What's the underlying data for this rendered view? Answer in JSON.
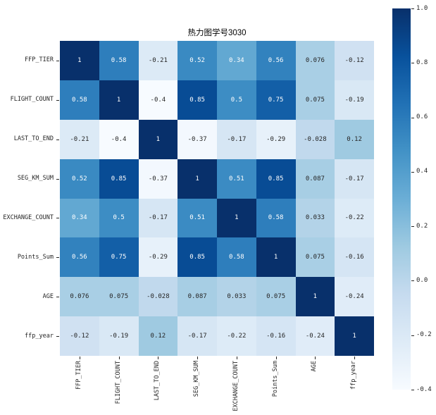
{
  "chart_data": {
    "type": "heatmap",
    "title": "热力图学号3030",
    "labels": [
      "FFP_TIER",
      "FLIGHT_COUNT",
      "LAST_TO_END",
      "SEG_KM_SUM",
      "EXCHANGE_COUNT",
      "Points_Sum",
      "AGE",
      "ffp_year"
    ],
    "matrix": [
      [
        1,
        0.58,
        -0.21,
        0.52,
        0.34,
        0.56,
        0.076,
        -0.12
      ],
      [
        0.58,
        1,
        -0.4,
        0.85,
        0.5,
        0.75,
        0.075,
        -0.19
      ],
      [
        -0.21,
        -0.4,
        1,
        -0.37,
        -0.17,
        -0.29,
        -0.028,
        0.12
      ],
      [
        0.52,
        0.85,
        -0.37,
        1,
        0.51,
        0.85,
        0.087,
        -0.17
      ],
      [
        0.34,
        0.5,
        -0.17,
        0.51,
        1,
        0.58,
        0.033,
        -0.22
      ],
      [
        0.56,
        0.75,
        -0.29,
        0.85,
        0.58,
        1,
        0.075,
        -0.16
      ],
      [
        0.076,
        0.075,
        -0.028,
        0.087,
        0.033,
        0.075,
        1,
        -0.24
      ],
      [
        -0.12,
        -0.19,
        0.12,
        -0.17,
        -0.22,
        -0.16,
        -0.24,
        1
      ]
    ],
    "annotations": [
      [
        "1",
        "0.58",
        "-0.21",
        "0.52",
        "0.34",
        "0.56",
        "0.076",
        "-0.12"
      ],
      [
        "0.58",
        "1",
        "-0.4",
        "0.85",
        "0.5",
        "0.75",
        "0.075",
        "-0.19"
      ],
      [
        "-0.21",
        "-0.4",
        "1",
        "-0.37",
        "-0.17",
        "-0.29",
        "-0.028",
        "0.12"
      ],
      [
        "0.52",
        "0.85",
        "-0.37",
        "1",
        "0.51",
        "0.85",
        "0.087",
        "-0.17"
      ],
      [
        "0.34",
        "0.5",
        "-0.17",
        "0.51",
        "1",
        "0.58",
        "0.033",
        "-0.22"
      ],
      [
        "0.56",
        "0.75",
        "-0.29",
        "0.85",
        "0.58",
        "1",
        "0.075",
        "-0.16"
      ],
      [
        "0.076",
        "0.075",
        "-0.028",
        "0.087",
        "0.033",
        "0.075",
        "1",
        "-0.24"
      ],
      [
        "-0.12",
        "-0.19",
        "0.12",
        "-0.17",
        "-0.22",
        "-0.16",
        "-0.24",
        "1"
      ]
    ],
    "vmin": -0.4,
    "vmax": 1.0,
    "colormap": {
      "name": "Blues",
      "anchors": [
        "#f7fbff",
        "#deebf7",
        "#c6dbef",
        "#9ecae1",
        "#6baed6",
        "#4292c6",
        "#2171b5",
        "#08519c",
        "#08306b"
      ]
    },
    "annotation_text_colors": {
      "dark": "#262626",
      "light": "#ffffff"
    },
    "colorbar": {
      "position": "right",
      "ticks": [
        "1.0",
        "0.8",
        "0.6",
        "0.4",
        "0.2",
        "0.0",
        "-0.2",
        "-0.4"
      ]
    },
    "grid": false,
    "legend_position": "right-colorbar"
  }
}
